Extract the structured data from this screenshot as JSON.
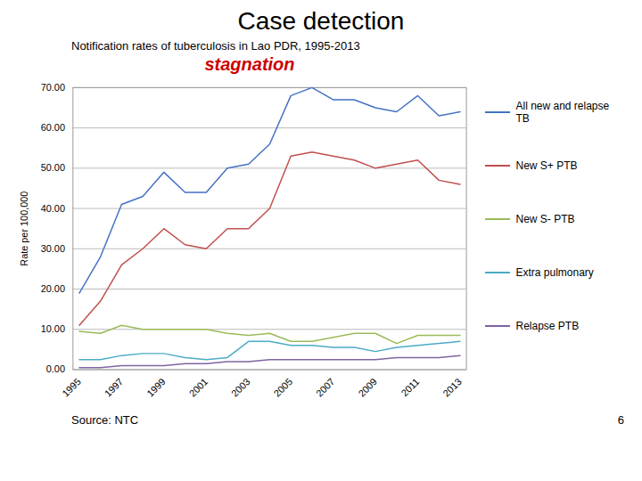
{
  "chart_data": {
    "type": "line",
    "title": "Case detection",
    "subtitle": "Notification rates of tuberculosis in Lao PDR, 1995-2013",
    "annotation": {
      "text": "stagnation",
      "color": "#cc0000"
    },
    "ylabel": "Rate per 100,000",
    "source": "Source: NTC",
    "page_num": "6",
    "x": [
      1995,
      1996,
      1997,
      1998,
      1999,
      2000,
      2001,
      2002,
      2003,
      2004,
      2005,
      2006,
      2007,
      2008,
      2009,
      2010,
      2011,
      2012,
      2013
    ],
    "series": [
      {
        "name": "All new and relapse TB",
        "color": "#4472c4",
        "values": [
          19,
          28,
          41,
          43,
          49,
          44,
          44,
          50,
          51,
          56,
          68,
          70,
          67,
          67,
          65,
          64,
          68,
          63,
          64
        ]
      },
      {
        "name": "New S+ PTB",
        "color": "#c0504d",
        "values": [
          11,
          17,
          26,
          30,
          35,
          31,
          30,
          35,
          35,
          40,
          53,
          54,
          53,
          52,
          50,
          51,
          52,
          47,
          46
        ]
      },
      {
        "name": "New S- PTB",
        "color": "#9bbb59",
        "values": [
          9.5,
          9,
          11,
          10,
          10,
          10,
          10,
          9,
          8.5,
          9,
          7,
          7,
          8,
          9,
          9,
          6.5,
          8.5,
          8.5,
          8.5
        ]
      },
      {
        "name": "Extra pulmonary",
        "color": "#4bacc6",
        "values": [
          2.5,
          2.5,
          3.5,
          4,
          4,
          3,
          2.5,
          3,
          7,
          7,
          6,
          6,
          5.5,
          5.5,
          4.5,
          5.5,
          6,
          6.5,
          7
        ]
      },
      {
        "name": "Relapse PTB",
        "color": "#8064a2",
        "values": [
          0.5,
          0.5,
          1,
          1,
          1,
          1.5,
          1.5,
          2,
          2,
          2.5,
          2.5,
          2.5,
          2.5,
          2.5,
          2.5,
          3,
          3,
          3,
          3.5
        ]
      }
    ],
    "xlim": [
      1994.7,
      2013.3
    ],
    "xticks": [
      1995,
      1997,
      1999,
      2001,
      2003,
      2005,
      2007,
      2009,
      2011,
      2013
    ],
    "ylim": [
      0,
      70
    ],
    "yticks": [
      {
        "value": 0,
        "label": "0.00"
      },
      {
        "value": 10,
        "label": "10.00"
      },
      {
        "value": 20,
        "label": "20.00"
      },
      {
        "value": 30,
        "label": "30.00"
      },
      {
        "value": 40,
        "label": "40.00"
      },
      {
        "value": 50,
        "label": "50.00"
      },
      {
        "value": 60,
        "label": "60.00"
      },
      {
        "value": 70,
        "label": "70.00"
      }
    ],
    "grid": "y",
    "legend": "right"
  }
}
